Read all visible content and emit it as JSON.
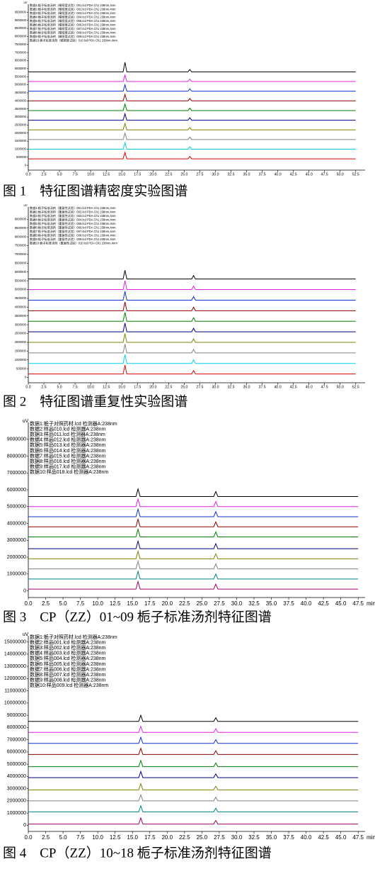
{
  "chart_data": [
    {
      "type": "line",
      "caption": "图 1　特征图谱精密度实验图谱",
      "y_label": "uV",
      "xlim": [
        0,
        54
      ],
      "ylim": [
        -300000,
        10000000
      ],
      "xticks": [
        {
          "value": 0,
          "label": "0.0"
        },
        2.5,
        {
          "value": 5,
          "label": "5.0"
        },
        7.5,
        {
          "value": 10,
          "label": "10.0"
        },
        12.5,
        {
          "value": 15,
          "label": "15.0"
        },
        17.5,
        {
          "value": 20,
          "label": "20.0"
        },
        22.5,
        {
          "value": 25,
          "label": "25.0"
        },
        27.5,
        {
          "value": 30,
          "label": "30.0"
        },
        32.5,
        {
          "value": 35,
          "label": "35.0"
        },
        37.5,
        {
          "value": 40,
          "label": "40.0"
        },
        42.5,
        {
          "value": 45,
          "label": "45.0"
        },
        47.5,
        {
          "value": 50,
          "label": "50.0"
        },
        52.5
      ],
      "yticks": [
        0,
        500000,
        1000000,
        1500000,
        2000000,
        2500000,
        3000000,
        3500000,
        4000000,
        4500000,
        5000000,
        5500000,
        6000000,
        6500000,
        7000000,
        7500000,
        8000000,
        8500000,
        9000000,
        9500000
      ],
      "x": [
        0,
        15.2,
        15.5,
        15.8,
        25.6,
        25.9,
        26.2,
        52.5
      ],
      "series": [
        {
          "name": "数据1:栀子标准汤剂（精密度试验）001.lcd PDA Ch1 238nm,4nm",
          "color": "#000000",
          "values": [
            5800000,
            5800000,
            6400000,
            5800000,
            5800000,
            5950000,
            5800000,
            5800000
          ]
        },
        {
          "name": "数据2:栀子标准汤剂（精密度试验）002.lcd PDA Ch1 238nm,4nm",
          "color": "#e020e0",
          "values": [
            5200000,
            5200000,
            5600000,
            5200000,
            5200000,
            5350000,
            5200000,
            5200000
          ]
        },
        {
          "name": "数据3:栀子标准汤剂（精密度试验）003.lcd PDA Ch1 238nm,4nm",
          "color": "#1030d0",
          "values": [
            4600000,
            4600000,
            5000000,
            4600000,
            4600000,
            4750000,
            4600000,
            4600000
          ]
        },
        {
          "name": "数据4:栀子标准汤剂（精密度试验）004.lcd PDA Ch1 238nm,4nm",
          "color": "#900000",
          "values": [
            4000000,
            4000000,
            4400000,
            4000000,
            4000000,
            4150000,
            4000000,
            4000000
          ]
        },
        {
          "name": "数据5:栀子标准汤剂（精密度试验）005.lcd PDA Ch1 238nm,4nm",
          "color": "#008000",
          "values": [
            3400000,
            3400000,
            3800000,
            3400000,
            3400000,
            3550000,
            3400000,
            3400000
          ]
        },
        {
          "name": "数据6:栀子标准汤剂（精密度试验）006.lcd PDA Ch1 238nm,4nm",
          "color": "#000080",
          "values": [
            2800000,
            2800000,
            3200000,
            2800000,
            2800000,
            2950000,
            2800000,
            2800000
          ]
        },
        {
          "name": "数据7:栀子标准汤剂（精密度试验）007.lcd PDA Ch1 238nm,4nm",
          "color": "#808000",
          "values": [
            2200000,
            2200000,
            2600000,
            2200000,
            2200000,
            2350000,
            2200000,
            2200000
          ]
        },
        {
          "name": "数据8:栀子标准汤剂（精密度试验）008.lcd PDA Ch1 238nm,4nm",
          "color": "#808080",
          "values": [
            1600000,
            1600000,
            2000000,
            1600000,
            1600000,
            1750000,
            1600000,
            1600000
          ]
        },
        {
          "name": "数据9:栀子标准汤剂（精密度试验）009.lcd PDA Ch1 238nm,4nm",
          "color": "#00d0e0",
          "values": [
            1000000,
            1000000,
            1400000,
            1000000,
            1000000,
            1150000,
            1000000,
            1000000
          ]
        },
        {
          "name": "数据10:栀子标准汤剂（精密度试验）010.lcd PDA Ch1 238nm,4nm",
          "color": "#e00000",
          "values": [
            400000,
            400000,
            800000,
            400000,
            400000,
            550000,
            400000,
            400000
          ]
        }
      ]
    },
    {
      "type": "line",
      "caption": "图 2　特征图谱重复性实验图谱",
      "y_label": "uV",
      "xlim": [
        0,
        54
      ],
      "ylim": [
        -300000,
        9700000
      ],
      "xticks": [
        {
          "value": 0,
          "label": "0.0"
        },
        2.5,
        {
          "value": 5,
          "label": "5.0"
        },
        7.5,
        {
          "value": 10,
          "label": "10.0"
        },
        12.5,
        {
          "value": 15,
          "label": "15.0"
        },
        17.5,
        {
          "value": 20,
          "label": "20.0"
        },
        22.5,
        {
          "value": 25,
          "label": "25.0"
        },
        27.5,
        {
          "value": 30,
          "label": "30.0"
        },
        32.5,
        {
          "value": 35,
          "label": "35.0"
        },
        37.5,
        {
          "value": 40,
          "label": "40.0"
        },
        42.5,
        {
          "value": 45,
          "label": "45.0"
        },
        47.5,
        {
          "value": 50,
          "label": "50.0"
        },
        52.5
      ],
      "yticks": [
        0,
        500000,
        1000000,
        1500000,
        2000000,
        2500000,
        3000000,
        3500000,
        4000000,
        4500000,
        5000000,
        5500000,
        6000000,
        6500000,
        7000000,
        7500000,
        8000000,
        8500000,
        9000000
      ],
      "x": [
        0,
        15.2,
        15.5,
        15.8,
        26.2,
        26.5,
        26.8,
        52.5
      ],
      "series": [
        {
          "name": "数据1:栀子标准汤剂（重复性试验）001.lcd PDA Ch1 238nm,4nm",
          "color": "#000000",
          "values": [
            5600000,
            5600000,
            6100000,
            5600000,
            5600000,
            5800000,
            5600000,
            5600000
          ]
        },
        {
          "name": "数据2:栀子标准汤剂（重复性试验）002.lcd PDA Ch1 238nm,4nm",
          "color": "#e020e0",
          "values": [
            5000000,
            5000000,
            5500000,
            5000000,
            5000000,
            5200000,
            5000000,
            5000000
          ]
        },
        {
          "name": "数据3:栀子标准汤剂（重复性试验）003.lcd PDA Ch1 238nm,4nm",
          "color": "#1030d0",
          "values": [
            4400000,
            4400000,
            4900000,
            4400000,
            4400000,
            4600000,
            4400000,
            4400000
          ]
        },
        {
          "name": "数据4:栀子标准汤剂（重复性试验）004.lcd PDA Ch1 238nm,4nm",
          "color": "#900000",
          "values": [
            3800000,
            3800000,
            4300000,
            3800000,
            3800000,
            4000000,
            3800000,
            3800000
          ]
        },
        {
          "name": "数据5:栀子标准汤剂（重复性试验）005.lcd PDA Ch1 238nm,4nm",
          "color": "#008000",
          "values": [
            3200000,
            3200000,
            3700000,
            3200000,
            3200000,
            3400000,
            3200000,
            3200000
          ]
        },
        {
          "name": "数据6:栀子标准汤剂（重复性试验）006.lcd PDA Ch1 238nm,4nm",
          "color": "#000080",
          "values": [
            2600000,
            2600000,
            3100000,
            2600000,
            2600000,
            2800000,
            2600000,
            2600000
          ]
        },
        {
          "name": "数据7:栀子标准汤剂（重复性试验）007.lcd PDA Ch1 238nm,4nm",
          "color": "#808000",
          "values": [
            2000000,
            2000000,
            2500000,
            2000000,
            2000000,
            2200000,
            2000000,
            2000000
          ]
        },
        {
          "name": "数据8:栀子标准汤剂（重复性试验）008.lcd PDA Ch1 238nm,4nm",
          "color": "#808080",
          "values": [
            1400000,
            1400000,
            1900000,
            1400000,
            1400000,
            1600000,
            1400000,
            1400000
          ]
        },
        {
          "name": "数据9:栀子标准汤剂（重复性试验）009.lcd PDA Ch1 238nm,4nm",
          "color": "#00d0e0",
          "values": [
            800000,
            800000,
            1300000,
            800000,
            800000,
            1000000,
            800000,
            800000
          ]
        },
        {
          "name": "数据10:栀子标准汤剂（重复性试验）010.lcd PDA Ch1 238nm,4nm",
          "color": "#e00000",
          "values": [
            200000,
            200000,
            700000,
            200000,
            200000,
            400000,
            200000,
            200000
          ]
        }
      ]
    },
    {
      "type": "line",
      "caption": "图 3　CP（ZZ）01~09 栀子标准汤剂特征图谱",
      "y_label": "uV",
      "x_label": "min",
      "xlim": [
        0,
        48.5
      ],
      "ylim": [
        -400000,
        10000000
      ],
      "xticks": [
        {
          "value": 0,
          "label": "0.0"
        },
        2.5,
        {
          "value": 5,
          "label": "5.0"
        },
        7.5,
        {
          "value": 10,
          "label": "10.0"
        },
        12.5,
        {
          "value": 15,
          "label": "15.0"
        },
        17.5,
        {
          "value": 20,
          "label": "20.0"
        },
        22.5,
        {
          "value": 25,
          "label": "25.0"
        },
        27.5,
        {
          "value": 30,
          "label": "30.0"
        },
        32.5,
        {
          "value": 35,
          "label": "35.0"
        },
        37.5,
        {
          "value": 40,
          "label": "40.0"
        },
        42.5,
        {
          "value": 45,
          "label": "45.0"
        },
        47.5
      ],
      "yticks": [
        0,
        1000000,
        2000000,
        3000000,
        4000000,
        5000000,
        6000000,
        7000000,
        8000000,
        9000000
      ],
      "x": [
        0,
        15.5,
        15.8,
        16.1,
        26.7,
        27.0,
        27.3,
        47.5
      ],
      "series": [
        {
          "name": "数据1:栀子对照药材.lcd 检测器A:238nm",
          "color": "#000000",
          "values": [
            5600000,
            5600000,
            6050000,
            5600000,
            5600000,
            5900000,
            5600000,
            5600000
          ]
        },
        {
          "name": "数据2:样品010.lcd 检测器A:238nm",
          "color": "#e020e0",
          "values": [
            5000000,
            5000000,
            5450000,
            5000000,
            5000000,
            5300000,
            5000000,
            5000000
          ]
        },
        {
          "name": "数据3:样品011.lcd 检测器A:238nm",
          "color": "#1030d0",
          "values": [
            4400000,
            4400000,
            4850000,
            4400000,
            4400000,
            4700000,
            4400000,
            4400000
          ]
        },
        {
          "name": "数据4:样品012.lcd 检测器A:238nm",
          "color": "#900000",
          "values": [
            3800000,
            3800000,
            4250000,
            3800000,
            3800000,
            4100000,
            3800000,
            3800000
          ]
        },
        {
          "name": "数据5:样品013.lcd 检测器A:238nm",
          "color": "#008000",
          "values": [
            3200000,
            3200000,
            3650000,
            3200000,
            3200000,
            3500000,
            3200000,
            3200000
          ]
        },
        {
          "name": "数据6:样品014.lcd 检测器A:238nm",
          "color": "#000080",
          "values": [
            2500000,
            2500000,
            2950000,
            2500000,
            2500000,
            2800000,
            2500000,
            2500000
          ]
        },
        {
          "name": "数据7:样品015.lcd 检测器A:238nm",
          "color": "#808000",
          "values": [
            1900000,
            1900000,
            2350000,
            1900000,
            1900000,
            2200000,
            1900000,
            1900000
          ]
        },
        {
          "name": "数据8:样品016.lcd 检测器A:238nm",
          "color": "#808080",
          "values": [
            1300000,
            1300000,
            1750000,
            1300000,
            1300000,
            1600000,
            1300000,
            1300000
          ]
        },
        {
          "name": "数据9:样品017.lcd 检测器A:238nm",
          "color": "#008080",
          "values": [
            700000,
            700000,
            1150000,
            700000,
            700000,
            1000000,
            700000,
            700000
          ]
        },
        {
          "name": "数据10:样品018.lcd 检测器A:238nm",
          "color": "#a00060",
          "values": [
            100000,
            100000,
            550000,
            100000,
            100000,
            400000,
            100000,
            100000
          ]
        }
      ]
    },
    {
      "type": "line",
      "caption": "图 4　CP（ZZ）10~18 栀子标准汤剂特征图谱",
      "y_label": "uV",
      "x_label": "min",
      "xlim": [
        0,
        48.5
      ],
      "ylim": [
        -500000,
        15500000
      ],
      "xticks": [
        {
          "value": 0,
          "label": "0.0"
        },
        2.5,
        {
          "value": 5,
          "label": "5.0"
        },
        7.5,
        {
          "value": 10,
          "label": "10.0"
        },
        12.5,
        {
          "value": 15,
          "label": "15.0"
        },
        17.5,
        {
          "value": 20,
          "label": "20.0"
        },
        22.5,
        {
          "value": 25,
          "label": "25.0"
        },
        27.5,
        {
          "value": 30,
          "label": "30.0"
        },
        32.5,
        {
          "value": 35,
          "label": "35.0"
        },
        37.5,
        {
          "value": 40,
          "label": "40.0"
        },
        42.5,
        {
          "value": 45,
          "label": "45.0"
        },
        47.5
      ],
      "yticks": [
        0,
        1000000,
        2000000,
        3000000,
        4000000,
        5000000,
        6000000,
        7000000,
        8000000,
        9000000,
        10000000,
        11000000,
        12000000,
        13000000,
        14000000,
        15000000
      ],
      "x": [
        0,
        15.9,
        16.2,
        16.5,
        26.7,
        27.0,
        27.3,
        47.5
      ],
      "series": [
        {
          "name": "数据1:栀子对照药材.lcd 检测器A:238nm",
          "color": "#000000",
          "values": [
            8500000,
            8500000,
            9000000,
            8500000,
            8500000,
            8800000,
            8500000,
            8500000
          ]
        },
        {
          "name": "数据2:样品001.lcd 检测器A:238nm",
          "color": "#e020e0",
          "values": [
            7600000,
            7600000,
            8100000,
            7600000,
            7600000,
            7900000,
            7600000,
            7600000
          ]
        },
        {
          "name": "数据3:样品002.lcd 检测器A:238nm",
          "color": "#1030d0",
          "values": [
            6700000,
            6700000,
            7200000,
            6700000,
            6700000,
            7000000,
            6700000,
            6700000
          ]
        },
        {
          "name": "数据4:样品003.lcd 检测器A:238nm",
          "color": "#900000",
          "values": [
            5800000,
            5800000,
            6300000,
            5800000,
            5800000,
            6100000,
            5800000,
            5800000
          ]
        },
        {
          "name": "数据5:样品004.lcd 检测器A:238nm",
          "color": "#008000",
          "values": [
            4800000,
            4800000,
            5300000,
            4800000,
            4800000,
            5100000,
            4800000,
            4800000
          ]
        },
        {
          "name": "数据6:样品005.lcd 检测器A:238nm",
          "color": "#000080",
          "values": [
            3900000,
            3900000,
            4400000,
            3900000,
            3900000,
            4200000,
            3900000,
            3900000
          ]
        },
        {
          "name": "数据7:样品006.lcd 检测器A:238nm",
          "color": "#808000",
          "values": [
            2900000,
            2900000,
            3400000,
            2900000,
            2900000,
            3200000,
            2900000,
            2900000
          ]
        },
        {
          "name": "数据8:样品007.lcd 检测器A:238nm",
          "color": "#808080",
          "values": [
            2000000,
            2000000,
            2500000,
            2000000,
            2000000,
            2300000,
            2000000,
            2000000
          ]
        },
        {
          "name": "数据9:样品008.lcd 检测器A:238nm",
          "color": "#008080",
          "values": [
            1100000,
            1100000,
            1600000,
            1100000,
            1100000,
            1400000,
            1100000,
            1100000
          ]
        },
        {
          "name": "数据10:样品009.lcd 检测器A:238nm",
          "color": "#a00060",
          "values": [
            100000,
            100000,
            600000,
            100000,
            100000,
            400000,
            100000,
            100000
          ]
        }
      ]
    }
  ]
}
